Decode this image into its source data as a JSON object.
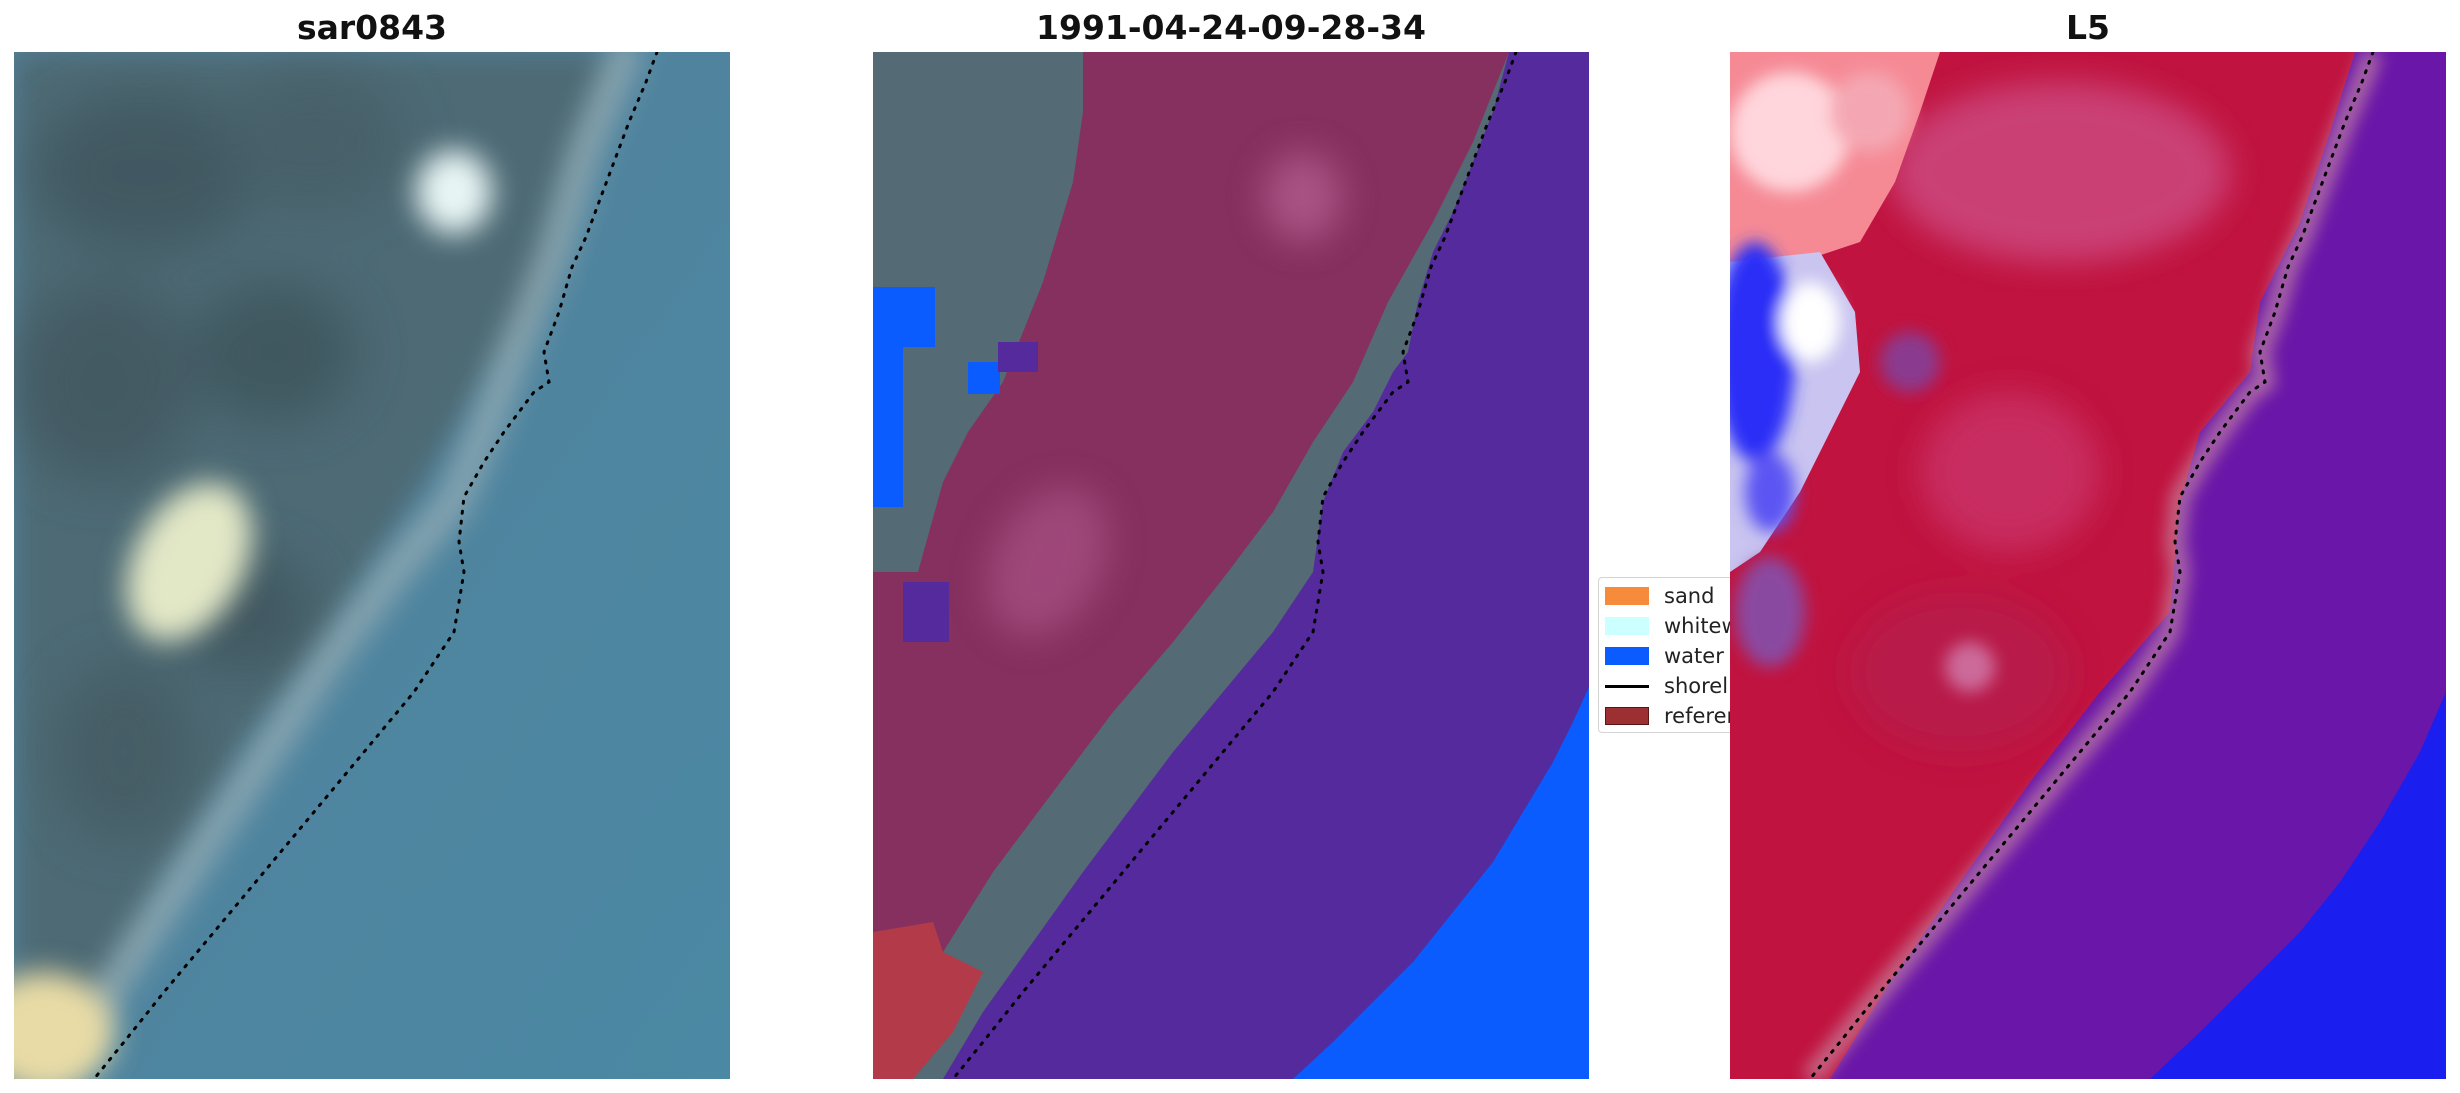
{
  "panels": [
    {
      "title": "sar0843"
    },
    {
      "title": "1991-04-24-09-28-34"
    },
    {
      "title": "L5"
    }
  ],
  "legend": {
    "items": [
      {
        "label": "sand",
        "color": "#f68b3c"
      },
      {
        "label": "whitew",
        "color": "#ccffff"
      },
      {
        "label": "water",
        "color": "#0b5cff"
      },
      {
        "label": "shorel",
        "color": "#000000"
      },
      {
        "label": "referen",
        "color": "#9b2f31"
      }
    ]
  },
  "colors": {
    "rgb_water": "#4a7f9c",
    "rgb_land": "#4f6670",
    "class_land_overlay": "#8b2e63",
    "class_water": "#552a9c",
    "class_water_bright": "#0b5cff",
    "class_reference": "#b23a49",
    "mndwi_land": "#c0133f",
    "mndwi_water": "#6a16a8",
    "mndwi_blue": "#1a1ff0"
  }
}
